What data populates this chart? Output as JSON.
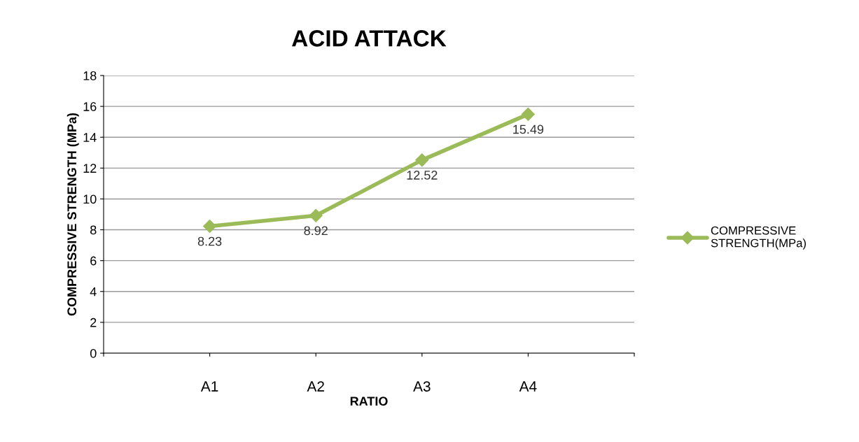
{
  "chart_data": {
    "type": "line",
    "title": "ACID ATTACK",
    "xlabel": "RATIO",
    "ylabel": "COMPRESSIVE STRENGTH (MPa)",
    "categories": [
      null,
      "A1",
      "A2",
      "A3",
      "A4",
      null
    ],
    "series": [
      {
        "name": "COMPRESSIVE STRENGTH(MPa)",
        "color": "#9bbb59",
        "values": [
          null,
          8.23,
          8.92,
          12.52,
          15.49,
          null
        ]
      }
    ],
    "ylim": [
      0,
      18
    ],
    "yticks": [
      0,
      2,
      4,
      6,
      8,
      10,
      12,
      14,
      16,
      18
    ],
    "grid": "y",
    "legend": "right",
    "marker": "diamond",
    "line_style": "solid",
    "data_labels": true
  }
}
